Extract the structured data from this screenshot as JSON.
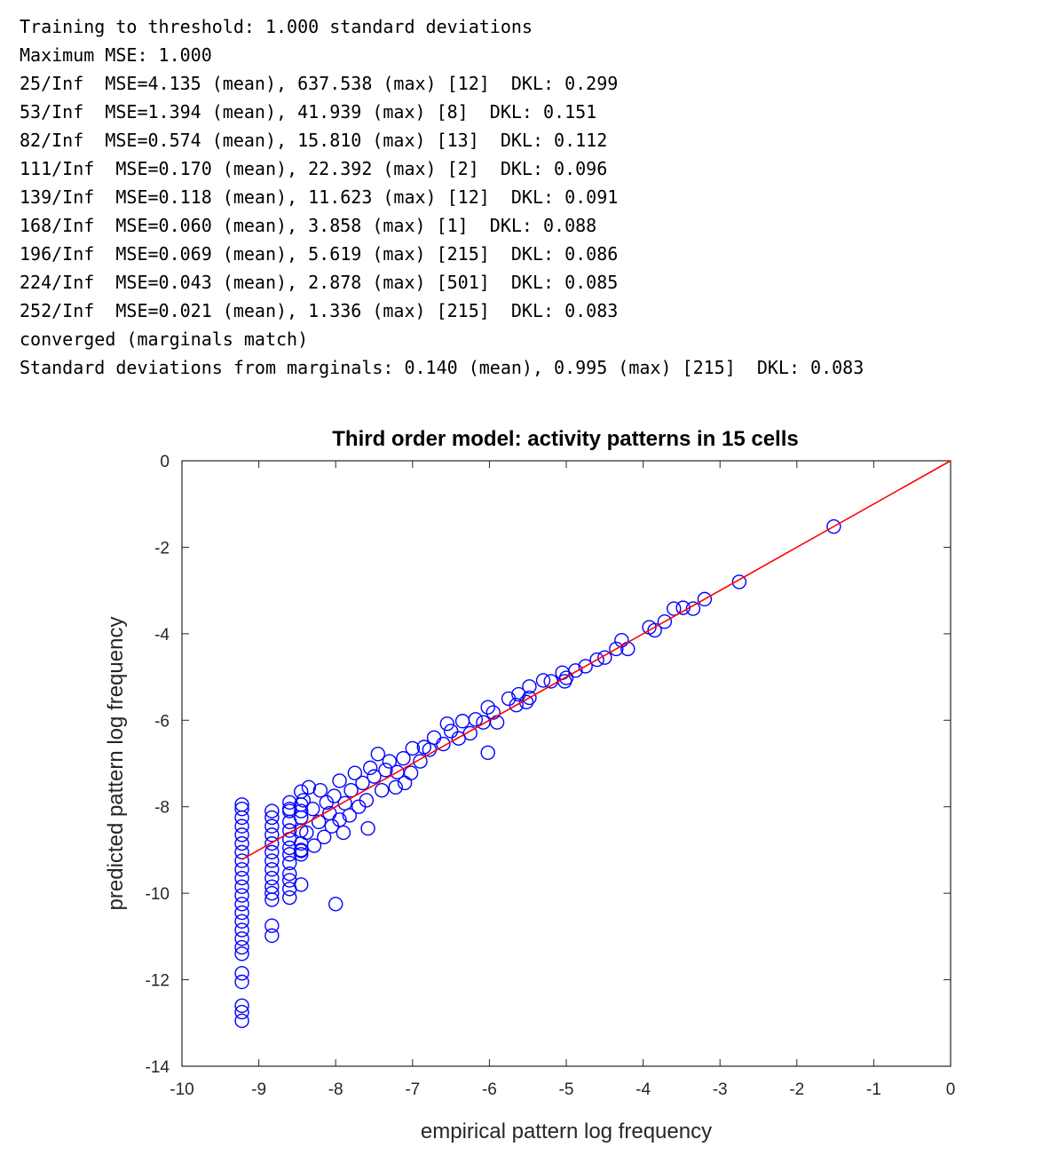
{
  "console": {
    "lines": [
      "Training to threshold: 1.000 standard deviations",
      "Maximum MSE: 1.000",
      "25/Inf  MSE=4.135 (mean), 637.538 (max) [12]  DKL: 0.299",
      "53/Inf  MSE=1.394 (mean), 41.939 (max) [8]  DKL: 0.151",
      "82/Inf  MSE=0.574 (mean), 15.810 (max) [13]  DKL: 0.112",
      "111/Inf  MSE=0.170 (mean), 22.392 (max) [2]  DKL: 0.096",
      "139/Inf  MSE=0.118 (mean), 11.623 (max) [12]  DKL: 0.091",
      "168/Inf  MSE=0.060 (mean), 3.858 (max) [1]  DKL: 0.088",
      "196/Inf  MSE=0.069 (mean), 5.619 (max) [215]  DKL: 0.086",
      "224/Inf  MSE=0.043 (mean), 2.878 (max) [501]  DKL: 0.085",
      "252/Inf  MSE=0.021 (mean), 1.336 (max) [215]  DKL: 0.083",
      "converged (marginals match)",
      "Standard deviations from marginals: 0.140 (mean), 0.995 (max) [215]  DKL: 0.083"
    ]
  },
  "chart_data": {
    "type": "scatter",
    "title": "Third order model: activity patterns in 15 cells",
    "xlabel": "empirical pattern log frequency",
    "ylabel": "predicted pattern log frequency",
    "xlim": [
      -10,
      0
    ],
    "ylim": [
      -14,
      0
    ],
    "xticks": [
      "-10",
      "-9",
      "-8",
      "-7",
      "-6",
      "-5",
      "-4",
      "-3",
      "-2",
      "-1",
      "0"
    ],
    "yticks": [
      "0",
      "-2",
      "-4",
      "-6",
      "-8",
      "-10",
      "-12",
      "-14"
    ],
    "grid": false,
    "marker_color": "#0000ff",
    "line_color": "#ff0000",
    "reference_line": {
      "x": [
        -9.22,
        0
      ],
      "y": [
        -9.22,
        0
      ]
    },
    "points": [
      [
        -1.52,
        -1.52
      ],
      [
        -2.75,
        -2.8
      ],
      [
        -3.2,
        -3.2
      ],
      [
        -3.35,
        -3.42
      ],
      [
        -3.48,
        -3.4
      ],
      [
        -3.6,
        -3.42
      ],
      [
        -3.72,
        -3.72
      ],
      [
        -3.85,
        -3.92
      ],
      [
        -3.92,
        -3.85
      ],
      [
        -4.2,
        -4.35
      ],
      [
        -4.28,
        -4.15
      ],
      [
        -4.35,
        -4.35
      ],
      [
        -4.5,
        -4.55
      ],
      [
        -4.6,
        -4.6
      ],
      [
        -4.75,
        -4.75
      ],
      [
        -4.88,
        -4.85
      ],
      [
        -5.0,
        -5.02
      ],
      [
        -5.05,
        -4.9
      ],
      [
        -5.02,
        -5.1
      ],
      [
        -5.2,
        -5.1
      ],
      [
        -5.3,
        -5.08
      ],
      [
        -5.48,
        -5.22
      ],
      [
        -5.48,
        -5.48
      ],
      [
        -5.52,
        -5.58
      ],
      [
        -5.62,
        -5.4
      ],
      [
        -5.65,
        -5.65
      ],
      [
        -5.75,
        -5.5
      ],
      [
        -5.95,
        -5.82
      ],
      [
        -5.9,
        -6.05
      ],
      [
        -6.02,
        -5.7
      ],
      [
        -6.08,
        -6.05
      ],
      [
        -6.02,
        -6.75
      ],
      [
        -6.18,
        -5.98
      ],
      [
        -6.25,
        -6.3
      ],
      [
        -6.35,
        -6.02
      ],
      [
        -6.4,
        -6.42
      ],
      [
        -6.5,
        -6.25
      ],
      [
        -6.55,
        -6.08
      ],
      [
        -6.6,
        -6.55
      ],
      [
        -6.72,
        -6.4
      ],
      [
        -6.78,
        -6.68
      ],
      [
        -6.85,
        -6.62
      ],
      [
        -6.9,
        -6.95
      ],
      [
        -7.0,
        -6.65
      ],
      [
        -7.02,
        -7.22
      ],
      [
        -7.1,
        -7.45
      ],
      [
        -7.12,
        -6.88
      ],
      [
        -7.2,
        -7.2
      ],
      [
        -7.22,
        -7.55
      ],
      [
        -7.3,
        -6.95
      ],
      [
        -7.35,
        -7.15
      ],
      [
        -7.4,
        -7.62
      ],
      [
        -7.45,
        -6.78
      ],
      [
        -7.5,
        -7.3
      ],
      [
        -7.55,
        -7.1
      ],
      [
        -7.58,
        -8.5
      ],
      [
        -7.6,
        -7.85
      ],
      [
        -7.65,
        -7.45
      ],
      [
        -7.7,
        -8.0
      ],
      [
        -7.75,
        -7.22
      ],
      [
        -7.8,
        -7.62
      ],
      [
        -7.82,
        -8.2
      ],
      [
        -7.88,
        -7.92
      ],
      [
        -7.9,
        -8.6
      ],
      [
        -7.95,
        -8.3
      ],
      [
        -7.95,
        -7.4
      ],
      [
        -8.0,
        -10.25
      ],
      [
        -8.02,
        -7.75
      ],
      [
        -8.05,
        -8.45
      ],
      [
        -8.08,
        -8.15
      ],
      [
        -8.12,
        -7.9
      ],
      [
        -8.15,
        -8.7
      ],
      [
        -8.2,
        -7.62
      ],
      [
        -8.22,
        -8.35
      ],
      [
        -8.28,
        -8.9
      ],
      [
        -8.3,
        -8.05
      ],
      [
        -8.35,
        -7.55
      ],
      [
        -8.38,
        -8.6
      ],
      [
        -8.42,
        -7.85
      ],
      [
        -8.45,
        -9.1
      ],
      [
        -8.45,
        -9.0
      ],
      [
        -8.45,
        -9.02
      ],
      [
        -8.45,
        -8.25
      ],
      [
        -8.45,
        -7.95
      ],
      [
        -8.45,
        -8.55
      ],
      [
        -8.45,
        -9.8
      ],
      [
        -8.45,
        -7.65
      ],
      [
        -8.45,
        -8.85
      ],
      [
        -8.45,
        -8.1
      ],
      [
        -8.6,
        -10.1
      ],
      [
        -8.6,
        -9.9
      ],
      [
        -8.6,
        -9.55
      ],
      [
        -8.6,
        -9.3
      ],
      [
        -8.6,
        -9.1
      ],
      [
        -8.6,
        -8.95
      ],
      [
        -8.6,
        -8.75
      ],
      [
        -8.6,
        -8.55
      ],
      [
        -8.6,
        -8.35
      ],
      [
        -8.6,
        -8.1
      ],
      [
        -8.6,
        -7.9
      ],
      [
        -8.6,
        -8.05
      ],
      [
        -8.6,
        -9.7
      ],
      [
        -8.83,
        -10.98
      ],
      [
        -8.83,
        -10.75
      ],
      [
        -8.83,
        -10.15
      ],
      [
        -8.83,
        -10.0
      ],
      [
        -8.83,
        -9.85
      ],
      [
        -8.83,
        -9.65
      ],
      [
        -8.83,
        -9.45
      ],
      [
        -8.83,
        -9.25
      ],
      [
        -8.83,
        -9.05
      ],
      [
        -8.83,
        -8.85
      ],
      [
        -8.83,
        -8.65
      ],
      [
        -8.83,
        -8.45
      ],
      [
        -8.83,
        -8.25
      ],
      [
        -8.83,
        -8.1
      ],
      [
        -9.22,
        -12.95
      ],
      [
        -9.22,
        -12.75
      ],
      [
        -9.22,
        -12.6
      ],
      [
        -9.22,
        -12.05
      ],
      [
        -9.22,
        -11.85
      ],
      [
        -9.22,
        -11.4
      ],
      [
        -9.22,
        -11.25
      ],
      [
        -9.22,
        -11.05
      ],
      [
        -9.22,
        -10.85
      ],
      [
        -9.22,
        -10.65
      ],
      [
        -9.22,
        -10.45
      ],
      [
        -9.22,
        -10.25
      ],
      [
        -9.22,
        -10.05
      ],
      [
        -9.22,
        -9.85
      ],
      [
        -9.22,
        -9.65
      ],
      [
        -9.22,
        -9.45
      ],
      [
        -9.22,
        -9.25
      ],
      [
        -9.22,
        -9.05
      ],
      [
        -9.22,
        -8.85
      ],
      [
        -9.22,
        -8.65
      ],
      [
        -9.22,
        -8.45
      ],
      [
        -9.22,
        -8.25
      ],
      [
        -9.22,
        -8.05
      ],
      [
        -9.22,
        -7.95
      ]
    ]
  }
}
